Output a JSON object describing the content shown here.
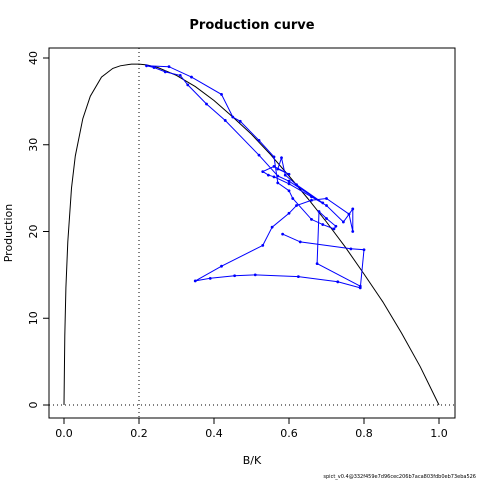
{
  "chart_data": {
    "type": "line",
    "title": "Production curve",
    "xlabel": "B/K",
    "ylabel": "Production",
    "xlim": [
      0,
      1
    ],
    "ylim": [
      0,
      40
    ],
    "x_ticks": [
      0.0,
      0.2,
      0.4,
      0.6,
      0.8,
      1.0
    ],
    "x_tick_labels": [
      "0.0",
      "0.2",
      "0.4",
      "0.6",
      "0.8",
      "1.0"
    ],
    "y_ticks": [
      0,
      10,
      20,
      30,
      40
    ],
    "y_tick_labels": [
      "0",
      "10",
      "20",
      "30",
      "40"
    ],
    "bmsy_over_k": 0.2,
    "reference_line_y": 0,
    "grid": false,
    "series": [
      {
        "kind": "model-curve",
        "color": "#000000",
        "x": [
          0.0,
          0.002,
          0.005,
          0.01,
          0.02,
          0.03,
          0.05,
          0.07,
          0.1,
          0.13,
          0.15,
          0.18,
          0.2,
          0.22,
          0.25,
          0.3,
          0.35,
          0.4,
          0.45,
          0.5,
          0.55,
          0.6,
          0.65,
          0.7,
          0.75,
          0.8,
          0.85,
          0.9,
          0.95,
          1.0
        ],
        "y": [
          0.0,
          8.0,
          13.5,
          18.8,
          25.0,
          28.7,
          33.0,
          35.6,
          37.8,
          38.8,
          39.1,
          39.3,
          39.3,
          39.2,
          38.9,
          38.0,
          36.7,
          35.1,
          33.2,
          31.2,
          28.9,
          26.4,
          23.8,
          21.1,
          18.2,
          15.1,
          11.9,
          8.3,
          4.4,
          0.0
        ]
      },
      {
        "kind": "observed-trajectory",
        "color": "#0000ff",
        "x": [
          0.583,
          0.63,
          0.765,
          0.8,
          0.79,
          0.73,
          0.625,
          0.51,
          0.455,
          0.39,
          0.35,
          0.42,
          0.53,
          0.555,
          0.6,
          0.62,
          0.66,
          0.7,
          0.76,
          0.77,
          0.77,
          0.745,
          0.7,
          0.66,
          0.6,
          0.56,
          0.545,
          0.53,
          0.56,
          0.6,
          0.57,
          0.58,
          0.59,
          0.62,
          0.69,
          0.6,
          0.57,
          0.52,
          0.43,
          0.38,
          0.33,
          0.31,
          0.27,
          0.24,
          0.22,
          0.28,
          0.34,
          0.42,
          0.45,
          0.47,
          0.52,
          0.56,
          0.57,
          0.6,
          0.61,
          0.66,
          0.69,
          0.72,
          0.725,
          0.7,
          0.68,
          0.675,
          0.79
        ],
        "y": [
          19.7,
          18.8,
          18.0,
          17.9,
          13.5,
          14.2,
          14.8,
          15.0,
          14.9,
          14.6,
          14.3,
          16.0,
          18.4,
          20.5,
          22.1,
          23.0,
          23.6,
          23.8,
          22.0,
          20.0,
          22.6,
          21.1,
          23.0,
          24.0,
          25.5,
          26.3,
          26.5,
          26.9,
          27.5,
          26.6,
          27.2,
          28.5,
          26.5,
          25.4,
          23.3,
          25.8,
          26.4,
          28.8,
          32.8,
          34.7,
          36.9,
          38.0,
          38.4,
          38.9,
          39.1,
          39.0,
          37.8,
          35.8,
          33.2,
          32.7,
          30.5,
          28.6,
          25.6,
          24.7,
          23.8,
          21.4,
          20.8,
          20.3,
          20.6,
          21.5,
          22.3,
          16.3,
          13.7
        ]
      }
    ]
  },
  "footer": {
    "version_text": "spict_v0.4@332f459e7d96cec206b7aca803fdb0eb73eba526"
  }
}
